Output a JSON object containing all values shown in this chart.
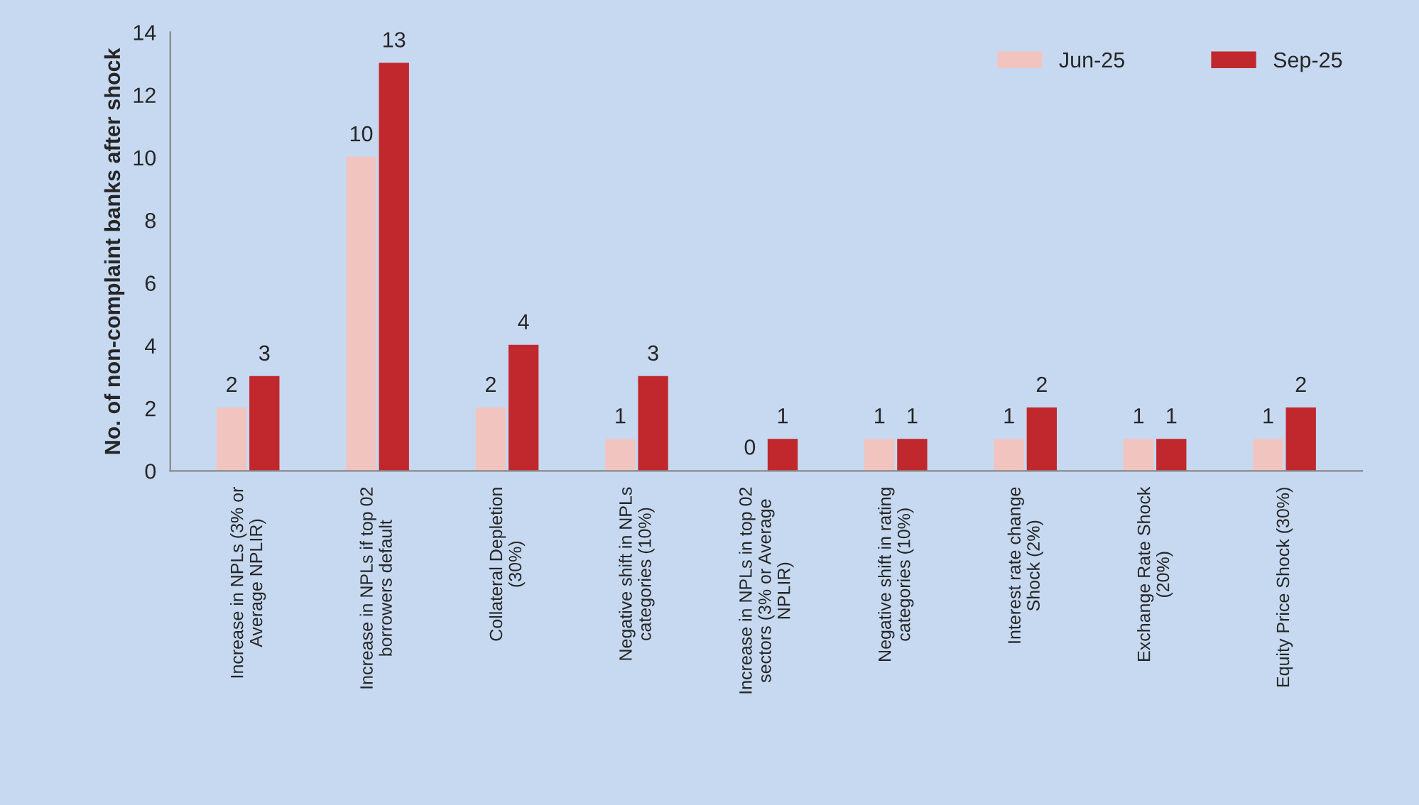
{
  "chart_data": {
    "type": "bar",
    "ylabel": "No. of non-complaint banks after shock",
    "categories": [
      "Increase in NPLs (3% or\nAverage NPLIR)",
      "Increase in NPLs if top 02\nborrowers default",
      "Collateral Depletion\n(30%)",
      "Negative shift in NPLs\ncategories (10%)",
      "Increase in NPLs in top 02\nsectors (3% or Average\nNPLIR)",
      "Negative shift in rating\ncategories (10%)",
      "Interest rate change\nShock (2%)",
      "Exchange Rate Shock\n(20%)",
      "Equity Price Shock (30%)"
    ],
    "series": [
      {
        "name": "Jun-25",
        "color": "#f2c4c0",
        "values": [
          2,
          10,
          2,
          1,
          0,
          1,
          1,
          1,
          1
        ]
      },
      {
        "name": "Sep-25",
        "color": "#c0282d",
        "values": [
          3,
          13,
          4,
          3,
          1,
          1,
          2,
          1,
          2
        ]
      }
    ],
    "ylim": [
      0,
      14
    ],
    "yticks": [
      0,
      2,
      4,
      6,
      8,
      10,
      12,
      14
    ],
    "data_labels": true,
    "legend": "top right",
    "grid": false
  }
}
